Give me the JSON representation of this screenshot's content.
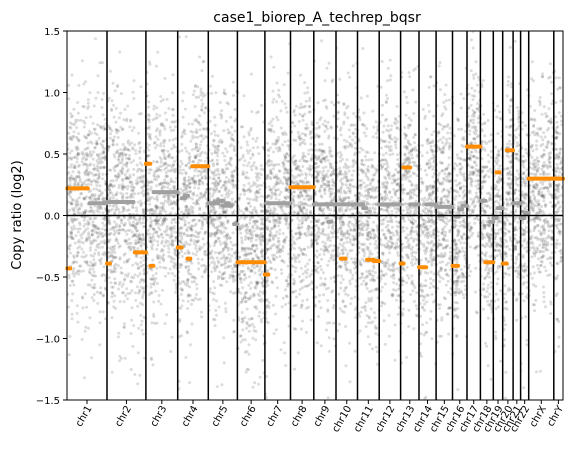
{
  "chart_data": {
    "type": "scatter",
    "title": "case1_biorep_A_techrep_bqsr",
    "xlabel": "",
    "ylabel": "Copy ratio (log2)",
    "ylim": [
      -1.5,
      1.5
    ],
    "yticks": [
      -1.5,
      -1.0,
      -0.5,
      0.0,
      0.5,
      1.0,
      1.5
    ],
    "ytick_labels": [
      "−1.5",
      "−1.0",
      "−0.5",
      "0.0",
      "0.5",
      "1.0",
      "1.5"
    ],
    "grid": false,
    "legend": "none",
    "reference_line_y": 0.0,
    "colors": {
      "points": "#5f5f5f",
      "segment_gray": "#a0a0a0",
      "segment_orange": "#ff8c00",
      "axis": "#000000"
    },
    "chromosomes": [
      "chr1",
      "chr2",
      "chr3",
      "chr4",
      "chr5",
      "chr6",
      "chr7",
      "chr8",
      "chr9",
      "chr10",
      "chr11",
      "chr12",
      "chr13",
      "chr14",
      "chr15",
      "chr16",
      "chr17",
      "chr18",
      "chr19",
      "chr20",
      "chr21",
      "chr22",
      "chrX",
      "chrY"
    ],
    "chrom_bounds_mb": [
      0,
      248.96,
      491.15,
      689.45,
      879.67,
      1061.21,
      1232.01,
      1391.35,
      1536.49,
      1674.88,
      1808.68,
      1943.77,
      2077.04,
      2191.4,
      2298.44,
      2400.43,
      2490.77,
      2574.03,
      2654.4,
      2713.02,
      2777.47,
      2824.18,
      2875,
      3031.04,
      3088.27
    ],
    "segments": [
      {
        "chrom": "chr1",
        "start": 2,
        "end": 130,
        "value": 0.22,
        "color": "orange"
      },
      {
        "chrom": "chr1",
        "start": 140,
        "end": 247,
        "value": 0.1,
        "color": "gray"
      },
      {
        "chrom": "chr1",
        "start": 2,
        "end": 12,
        "value": -0.43,
        "color": "orange"
      },
      {
        "chrom": "chr2",
        "start": 0,
        "end": 165,
        "value": 0.11,
        "color": "gray"
      },
      {
        "chrom": "chr2",
        "start": 0,
        "end": 8,
        "value": -0.39,
        "color": "orange"
      },
      {
        "chrom": "chr2",
        "start": 173,
        "end": 242,
        "value": -0.3,
        "color": "orange"
      },
      {
        "chrom": "chr3",
        "start": 0,
        "end": 28,
        "value": 0.42,
        "color": "orange"
      },
      {
        "chrom": "chr3",
        "start": 28,
        "end": 45,
        "value": -0.41,
        "color": "orange"
      },
      {
        "chrom": "chr3",
        "start": 48,
        "end": 198,
        "value": 0.19,
        "color": "gray"
      },
      {
        "chrom": "chr4",
        "start": 0,
        "end": 25,
        "value": -0.26,
        "color": "orange"
      },
      {
        "chrom": "chr4",
        "start": 25,
        "end": 45,
        "value": 0.14,
        "color": "gray"
      },
      {
        "chrom": "chr4",
        "start": 45,
        "end": 60,
        "value": 0.16,
        "color": "gray"
      },
      {
        "chrom": "chr4",
        "start": 60,
        "end": 70,
        "value": -0.35,
        "color": "orange"
      },
      {
        "chrom": "chr4",
        "start": 90,
        "end": 190,
        "value": 0.4,
        "color": "orange"
      },
      {
        "chrom": "chr5",
        "start": 0,
        "end": 60,
        "value": 0.1,
        "color": "gray"
      },
      {
        "chrom": "chr5",
        "start": 60,
        "end": 90,
        "value": 0.12,
        "color": "gray"
      },
      {
        "chrom": "chr5",
        "start": 90,
        "end": 110,
        "value": 0.08,
        "color": "gray"
      },
      {
        "chrom": "chr5",
        "start": 110,
        "end": 120,
        "value": 0.1,
        "color": "gray"
      },
      {
        "chrom": "chr5",
        "start": 120,
        "end": 145,
        "value": 0.08,
        "color": "gray"
      },
      {
        "chrom": "chr5",
        "start": 160,
        "end": 175,
        "value": -0.07,
        "color": "gray"
      },
      {
        "chrom": "chr6",
        "start": 0,
        "end": 170,
        "value": -0.38,
        "color": "orange"
      },
      {
        "chrom": "chr7",
        "start": 0,
        "end": 22,
        "value": -0.48,
        "color": "orange"
      },
      {
        "chrom": "chr7",
        "start": 8,
        "end": 159,
        "value": 0.1,
        "color": "gray"
      },
      {
        "chrom": "chr8",
        "start": 0,
        "end": 145,
        "value": 0.23,
        "color": "orange"
      },
      {
        "chrom": "chr9",
        "start": 0,
        "end": 138,
        "value": 0.09,
        "color": "gray"
      },
      {
        "chrom": "chr9",
        "start": 90,
        "end": 110,
        "value": -0.05,
        "color": "gray"
      },
      {
        "chrom": "chr10",
        "start": 0,
        "end": 80,
        "value": 0.09,
        "color": "gray"
      },
      {
        "chrom": "chr10",
        "start": 30,
        "end": 60,
        "value": -0.35,
        "color": "orange"
      },
      {
        "chrom": "chr10",
        "start": 95,
        "end": 134,
        "value": 0.09,
        "color": "gray"
      },
      {
        "chrom": "chr11",
        "start": 0,
        "end": 35,
        "value": 0.09,
        "color": "gray"
      },
      {
        "chrom": "chr11",
        "start": 35,
        "end": 50,
        "value": 0.06,
        "color": "gray"
      },
      {
        "chrom": "chr11",
        "start": 60,
        "end": 100,
        "value": -0.36,
        "color": "orange"
      },
      {
        "chrom": "chr11",
        "start": 100,
        "end": 135,
        "value": -0.37,
        "color": "orange"
      },
      {
        "chrom": "chr12",
        "start": 0,
        "end": 133,
        "value": 0.09,
        "color": "gray"
      },
      {
        "chrom": "chr13",
        "start": 0,
        "end": 18,
        "value": -0.39,
        "color": "orange"
      },
      {
        "chrom": "chr13",
        "start": 18,
        "end": 60,
        "value": 0.39,
        "color": "orange"
      },
      {
        "chrom": "chr13",
        "start": 60,
        "end": 114,
        "value": 0.09,
        "color": "gray"
      },
      {
        "chrom": "chr14",
        "start": 0,
        "end": 45,
        "value": -0.42,
        "color": "orange"
      },
      {
        "chrom": "chr14",
        "start": 45,
        "end": 107,
        "value": 0.09,
        "color": "gray"
      },
      {
        "chrom": "chr15",
        "start": 0,
        "end": 100,
        "value": 0.07,
        "color": "gray"
      },
      {
        "chrom": "chr15",
        "start": 20,
        "end": 30,
        "value": 0.0,
        "color": "gray"
      },
      {
        "chrom": "chr16",
        "start": 0,
        "end": 35,
        "value": -0.41,
        "color": "orange"
      },
      {
        "chrom": "chr16",
        "start": 20,
        "end": 35,
        "value": -0.01,
        "color": "gray"
      },
      {
        "chrom": "chr16",
        "start": 40,
        "end": 60,
        "value": 0.05,
        "color": "gray"
      },
      {
        "chrom": "chr16",
        "start": 60,
        "end": 90,
        "value": 0.08,
        "color": "gray"
      },
      {
        "chrom": "chr17",
        "start": 0,
        "end": 83,
        "value": 0.56,
        "color": "orange"
      },
      {
        "chrom": "chr18",
        "start": 0,
        "end": 30,
        "value": 0.12,
        "color": "gray"
      },
      {
        "chrom": "chr18",
        "start": 30,
        "end": 80,
        "value": -0.38,
        "color": "orange"
      },
      {
        "chrom": "chr18",
        "start": 60,
        "end": 80,
        "value": -0.05,
        "color": "gray"
      },
      {
        "chrom": "chr19",
        "start": 0,
        "end": 20,
        "value": -0.02,
        "color": "gray"
      },
      {
        "chrom": "chr19",
        "start": 20,
        "end": 27,
        "value": 0.35,
        "color": "orange"
      },
      {
        "chrom": "chr19",
        "start": 27,
        "end": 58,
        "value": 0.06,
        "color": "gray"
      },
      {
        "chrom": "chr20",
        "start": 0,
        "end": 25,
        "value": -0.39,
        "color": "orange"
      },
      {
        "chrom": "chr20",
        "start": 25,
        "end": 64,
        "value": 0.53,
        "color": "orange"
      },
      {
        "chrom": "chr21",
        "start": 0,
        "end": 46,
        "value": 0.1,
        "color": "gray"
      },
      {
        "chrom": "chr22",
        "start": 0,
        "end": 25,
        "value": -0.02,
        "color": "gray"
      },
      {
        "chrom": "chr22",
        "start": 25,
        "end": 50,
        "value": 0.02,
        "color": "gray"
      },
      {
        "chrom": "chrX",
        "start": 0,
        "end": 156,
        "value": 0.3,
        "color": "orange"
      },
      {
        "chrom": "chrY",
        "start": 0,
        "end": 57,
        "value": 0.3,
        "color": "orange"
      }
    ]
  }
}
